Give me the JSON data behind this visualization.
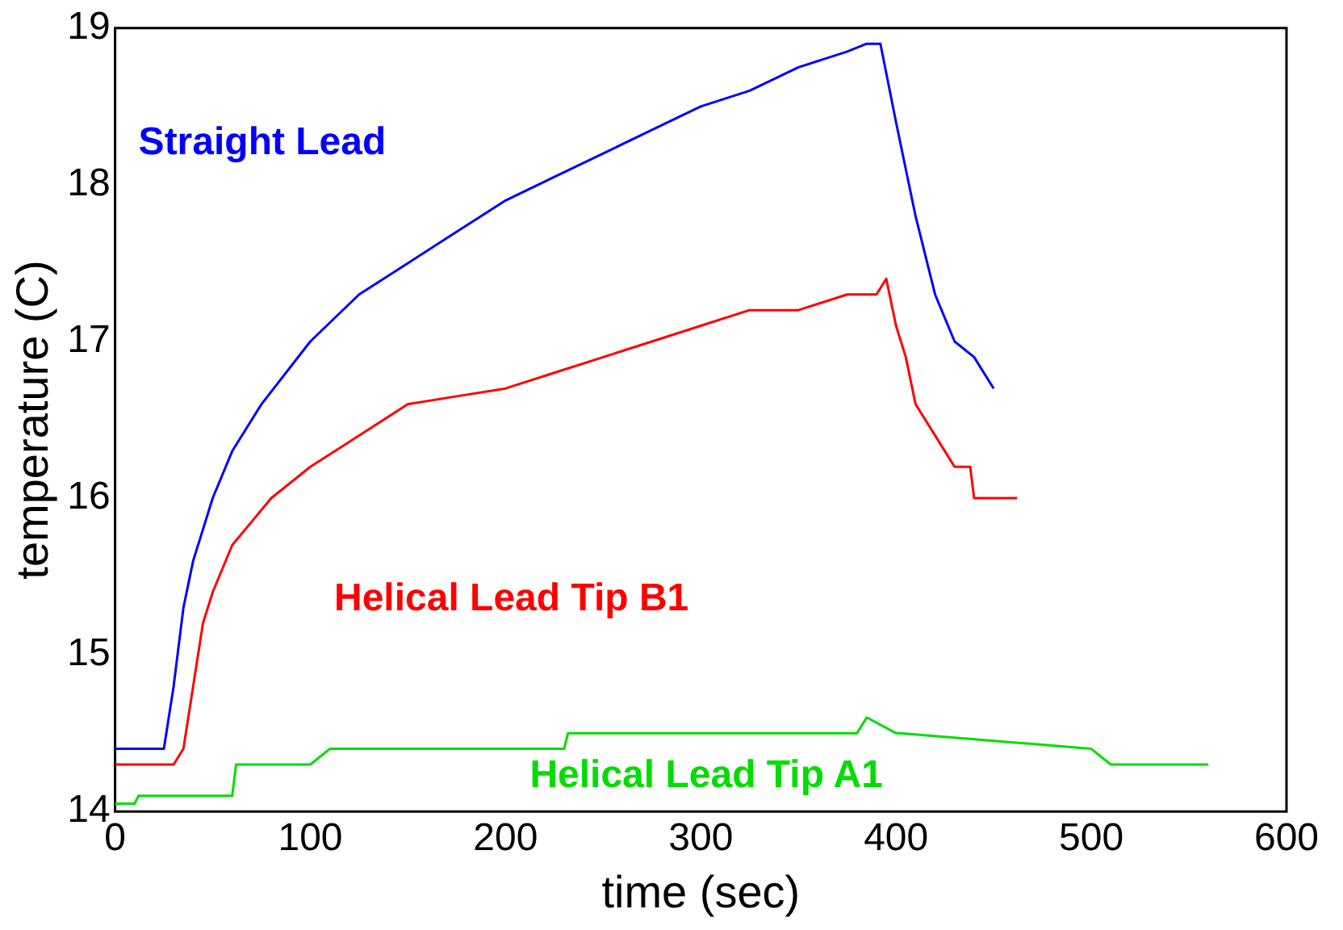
{
  "chart_data": {
    "type": "line",
    "xlabel": "time (sec)",
    "ylabel": "temperature (C)",
    "xlim": [
      0,
      600
    ],
    "ylim": [
      14,
      19
    ],
    "xticks": [
      0,
      100,
      200,
      300,
      400,
      500,
      600
    ],
    "yticks": [
      14,
      15,
      16,
      17,
      18,
      19
    ],
    "grid": false,
    "legend": false,
    "marker": "none",
    "line_style": "solid",
    "series": [
      {
        "name": "Straight Lead",
        "color": "#0000ff",
        "x": [
          0,
          25,
          30,
          35,
          40,
          50,
          60,
          75,
          100,
          125,
          150,
          175,
          200,
          225,
          250,
          275,
          300,
          325,
          350,
          375,
          385,
          392,
          400,
          405,
          410,
          420,
          430,
          440,
          450
        ],
        "values": [
          14.4,
          14.4,
          14.8,
          15.3,
          15.6,
          16.0,
          16.3,
          16.6,
          17.0,
          17.3,
          17.5,
          17.7,
          17.9,
          18.05,
          18.2,
          18.35,
          18.5,
          18.6,
          18.75,
          18.85,
          18.9,
          18.9,
          18.4,
          18.1,
          17.8,
          17.3,
          17.0,
          16.9,
          16.7
        ]
      },
      {
        "name": "Helical Lead Tip B1",
        "color": "#ff0000",
        "x": [
          0,
          30,
          35,
          40,
          45,
          50,
          60,
          70,
          80,
          100,
          125,
          150,
          175,
          200,
          225,
          250,
          275,
          300,
          325,
          350,
          375,
          390,
          395,
          400,
          405,
          410,
          420,
          430,
          438,
          440,
          462
        ],
        "values": [
          14.3,
          14.3,
          14.4,
          14.8,
          15.2,
          15.4,
          15.7,
          15.85,
          16.0,
          16.2,
          16.4,
          16.6,
          16.65,
          16.7,
          16.8,
          16.9,
          17.0,
          17.1,
          17.2,
          17.2,
          17.3,
          17.3,
          17.4,
          17.1,
          16.9,
          16.6,
          16.4,
          16.2,
          16.2,
          16.0,
          16.0
        ]
      },
      {
        "name": "Helical Lead Tip A1",
        "color": "#00dd00",
        "x": [
          0,
          10,
          12,
          60,
          62,
          100,
          110,
          230,
          232,
          380,
          385,
          400,
          402,
          500,
          510,
          560
        ],
        "values": [
          14.05,
          14.05,
          14.1,
          14.1,
          14.3,
          14.3,
          14.4,
          14.4,
          14.5,
          14.5,
          14.6,
          14.5,
          14.5,
          14.4,
          14.3,
          14.3
        ]
      }
    ]
  }
}
